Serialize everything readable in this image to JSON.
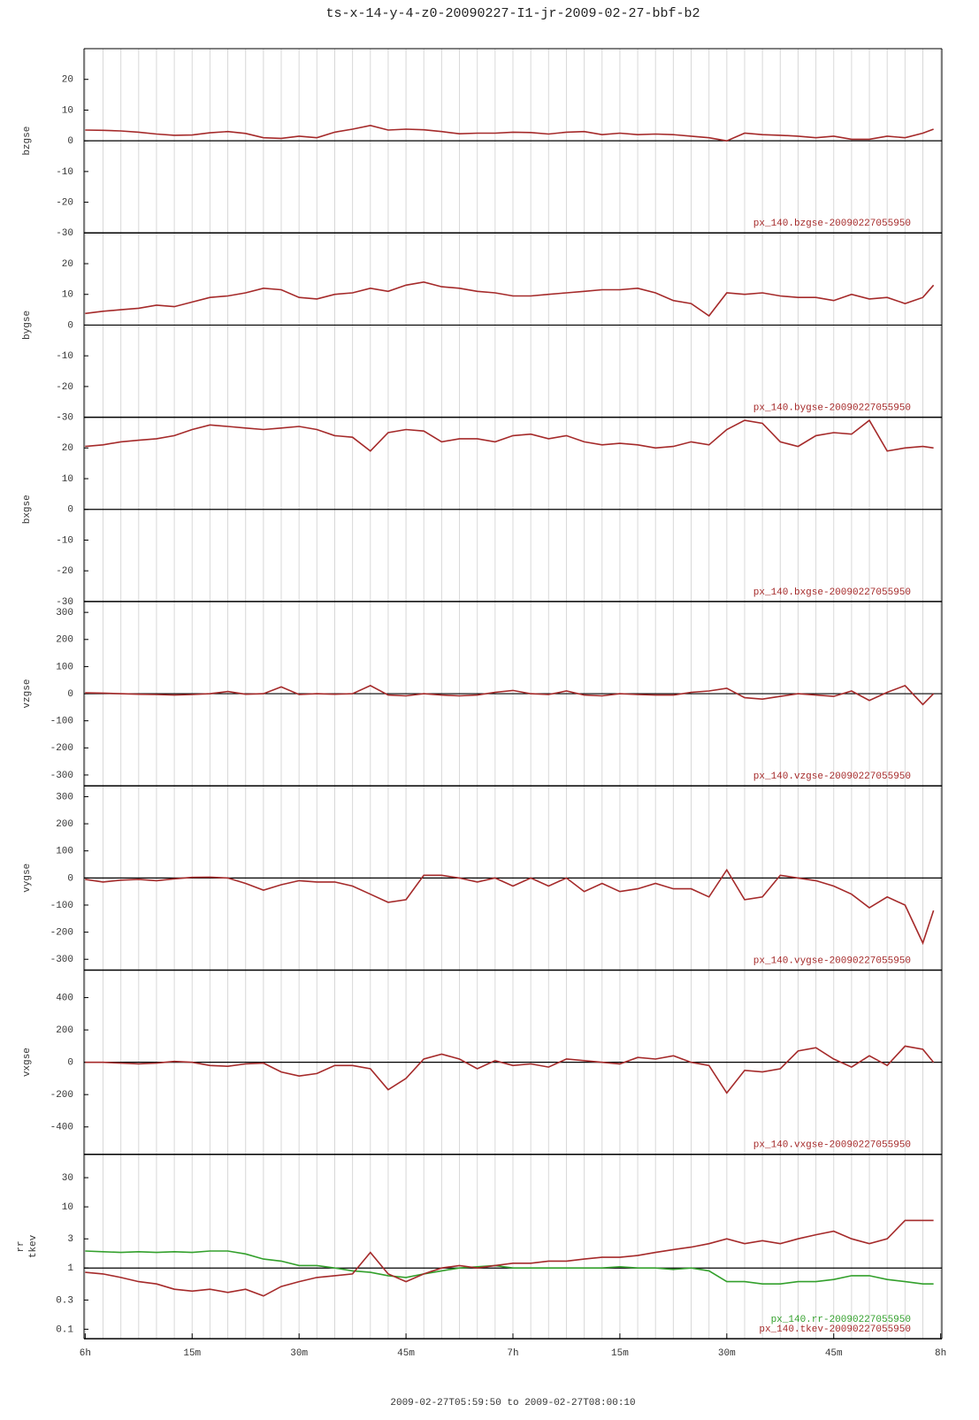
{
  "title": "ts-x-14-y-4-z0-20090227-I1-jr-2009-02-27-bbf-b2",
  "x_axis": {
    "xlim": [
      -0.1667,
      120.1667
    ],
    "xticks": [
      {
        "value": 0,
        "label": "6h"
      },
      {
        "value": 15,
        "label": "15m"
      },
      {
        "value": 30,
        "label": "30m"
      },
      {
        "value": 45,
        "label": "45m"
      },
      {
        "value": 60,
        "label": "7h"
      },
      {
        "value": 75,
        "label": "15m"
      },
      {
        "value": 90,
        "label": "30m"
      },
      {
        "value": 105,
        "label": "45m"
      },
      {
        "value": 120,
        "label": "8h"
      }
    ],
    "minor_ticks": [
      0,
      2.5,
      5,
      7.5,
      10,
      12.5,
      15,
      17.5,
      20,
      22.5,
      25,
      27.5,
      30,
      32.5,
      35,
      37.5,
      40,
      42.5,
      45,
      47.5,
      50,
      52.5,
      55,
      57.5,
      60,
      62.5,
      65,
      67.5,
      70,
      72.5,
      75,
      77.5,
      80,
      82.5,
      85,
      87.5,
      90,
      92.5,
      95,
      97.5,
      100,
      102.5,
      105,
      107.5,
      110,
      112.5,
      115,
      117.5,
      120
    ],
    "label": "2009-02-27T05:59:50 to 2009-02-27T08:00:10"
  },
  "chart_data": [
    {
      "type": "line",
      "ylabel": [
        "bzgse"
      ],
      "ylim": [
        -30,
        30
      ],
      "yticks": [
        -30,
        -20,
        -10,
        0,
        10,
        20
      ],
      "refline": 0,
      "x": [
        0,
        2.5,
        5,
        7.5,
        10,
        12.5,
        15,
        17.5,
        20,
        22.5,
        25,
        27.5,
        30,
        32.5,
        35,
        37.5,
        40,
        42.5,
        45,
        47.5,
        50,
        52.5,
        55,
        57.5,
        60,
        62.5,
        65,
        67.5,
        70,
        72.5,
        75,
        77.5,
        80,
        82.5,
        85,
        87.5,
        90,
        92.5,
        95,
        97.5,
        100,
        102.5,
        105,
        107.5,
        110,
        112.5,
        115,
        117.5,
        119
      ],
      "series": [
        {
          "name": "px_140.bzgse-20090227055950",
          "color": "#a52a2a",
          "values": [
            3.5,
            3.4,
            3.2,
            2.8,
            2.2,
            1.8,
            1.9,
            2.6,
            3.0,
            2.4,
            1.0,
            0.8,
            1.5,
            1.0,
            2.8,
            3.8,
            5.0,
            3.5,
            3.8,
            3.6,
            3.0,
            2.3,
            2.5,
            2.5,
            2.8,
            2.7,
            2.2,
            2.8,
            3.0,
            2.0,
            2.5,
            2.0,
            2.2,
            2.0,
            1.5,
            1.0,
            0.0,
            2.5,
            2.0,
            1.8,
            1.5,
            1.0,
            1.5,
            0.5,
            0.5,
            1.5,
            1.0,
            2.5,
            3.8
          ]
        }
      ]
    },
    {
      "type": "line",
      "ylabel": [
        "bygse"
      ],
      "ylim": [
        -30,
        30
      ],
      "yticks": [
        -30,
        -20,
        -10,
        0,
        10,
        20
      ],
      "refline": 0,
      "x": [
        0,
        2.5,
        5,
        7.5,
        10,
        12.5,
        15,
        17.5,
        20,
        22.5,
        25,
        27.5,
        30,
        32.5,
        35,
        37.5,
        40,
        42.5,
        45,
        47.5,
        50,
        52.5,
        55,
        57.5,
        60,
        62.5,
        65,
        67.5,
        70,
        72.5,
        75,
        77.5,
        80,
        82.5,
        85,
        87.5,
        90,
        92.5,
        95,
        97.5,
        100,
        102.5,
        105,
        107.5,
        110,
        112.5,
        115,
        117.5,
        119
      ],
      "series": [
        {
          "name": "px_140.bygse-20090227055950",
          "color": "#a52a2a",
          "values": [
            3.8,
            4.5,
            5,
            5.5,
            6.5,
            6,
            7.5,
            9,
            9.5,
            10.5,
            12,
            11.5,
            9,
            8.5,
            10,
            10.5,
            12,
            11,
            13,
            14,
            12.5,
            12,
            11,
            10.5,
            9.5,
            9.5,
            10,
            10.5,
            11,
            11.5,
            11.5,
            12,
            10.5,
            8,
            7,
            3,
            10.5,
            10,
            10.5,
            9.5,
            9,
            9,
            8,
            10,
            8.5,
            9,
            7,
            9,
            13
          ]
        }
      ]
    },
    {
      "type": "line",
      "ylabel": [
        "bxgse"
      ],
      "ylim": [
        -30,
        30
      ],
      "yticks": [
        -30,
        -20,
        -10,
        0,
        10,
        20
      ],
      "refline": 0,
      "x": [
        0,
        2.5,
        5,
        7.5,
        10,
        12.5,
        15,
        17.5,
        20,
        22.5,
        25,
        27.5,
        30,
        32.5,
        35,
        37.5,
        40,
        42.5,
        45,
        47.5,
        50,
        52.5,
        55,
        57.5,
        60,
        62.5,
        65,
        67.5,
        70,
        72.5,
        75,
        77.5,
        80,
        82.5,
        85,
        87.5,
        90,
        92.5,
        95,
        97.5,
        100,
        102.5,
        105,
        107.5,
        110,
        112.5,
        115,
        117.5,
        119
      ],
      "series": [
        {
          "name": "px_140.bxgse-20090227055950",
          "color": "#a52a2a",
          "values": [
            20.5,
            21,
            22,
            22.5,
            23,
            24,
            26,
            27.5,
            27,
            26.5,
            26,
            26.5,
            27,
            26,
            24,
            23.5,
            19,
            25,
            26,
            25.5,
            22,
            23,
            23,
            22,
            24,
            24.5,
            23,
            24,
            22,
            21,
            21.5,
            21,
            20,
            20.5,
            22,
            21,
            26,
            29,
            28,
            22,
            20.5,
            24,
            25,
            24.5,
            29,
            19,
            20,
            20.5,
            20
          ]
        }
      ]
    },
    {
      "type": "line",
      "ylabel": [
        "vzgse"
      ],
      "ylim": [
        -340,
        340
      ],
      "yticks": [
        -300,
        -200,
        -100,
        0,
        100,
        200,
        300
      ],
      "refline": 0,
      "x": [
        0,
        2.5,
        5,
        7.5,
        10,
        12.5,
        15,
        17.5,
        20,
        22.5,
        25,
        27.5,
        30,
        32.5,
        35,
        37.5,
        40,
        42.5,
        45,
        47.5,
        50,
        52.5,
        55,
        57.5,
        60,
        62.5,
        65,
        67.5,
        70,
        72.5,
        75,
        77.5,
        80,
        82.5,
        85,
        87.5,
        90,
        92.5,
        95,
        97.5,
        100,
        102.5,
        105,
        107.5,
        110,
        112.5,
        115,
        117.5,
        119
      ],
      "series": [
        {
          "name": "px_140.vzgse-20090227055950",
          "color": "#a52a2a",
          "values": [
            3,
            2,
            0,
            -2,
            -3,
            -5,
            -3,
            0,
            8,
            -2,
            0,
            25,
            -3,
            0,
            -2,
            0,
            30,
            -5,
            -8,
            0,
            -5,
            -8,
            -5,
            5,
            12,
            0,
            -3,
            10,
            -5,
            -8,
            0,
            -3,
            -5,
            -5,
            5,
            10,
            20,
            -15,
            -20,
            -10,
            0,
            -5,
            -10,
            10,
            -25,
            5,
            30,
            -40,
            0
          ]
        }
      ]
    },
    {
      "type": "line",
      "ylabel": [
        "vygse"
      ],
      "ylim": [
        -340,
        340
      ],
      "yticks": [
        -300,
        -200,
        -100,
        0,
        100,
        200,
        300
      ],
      "refline": 0,
      "x": [
        0,
        2.5,
        5,
        7.5,
        10,
        12.5,
        15,
        17.5,
        20,
        22.5,
        25,
        27.5,
        30,
        32.5,
        35,
        37.5,
        40,
        42.5,
        45,
        47.5,
        50,
        52.5,
        55,
        57.5,
        60,
        62.5,
        65,
        67.5,
        70,
        72.5,
        75,
        77.5,
        80,
        82.5,
        85,
        87.5,
        90,
        92.5,
        95,
        97.5,
        100,
        102.5,
        105,
        107.5,
        110,
        112.5,
        115,
        117.5,
        119
      ],
      "series": [
        {
          "name": "px_140.vygse-20090227055950",
          "color": "#a52a2a",
          "values": [
            -5,
            -15,
            -8,
            -5,
            -10,
            -3,
            2,
            3,
            0,
            -20,
            -45,
            -25,
            -10,
            -15,
            -15,
            -30,
            -60,
            -90,
            -80,
            10,
            10,
            0,
            -15,
            0,
            -30,
            0,
            -30,
            0,
            -50,
            -20,
            -50,
            -40,
            -20,
            -40,
            -40,
            -70,
            30,
            -80,
            -70,
            10,
            0,
            -10,
            -30,
            -60,
            -110,
            -70,
            -100,
            -240,
            -120
          ]
        }
      ]
    },
    {
      "type": "line",
      "ylabel": [
        "vxgse"
      ],
      "ylim": [
        -570,
        570
      ],
      "yticks": [
        -400,
        -200,
        0,
        200,
        400
      ],
      "refline": 0,
      "x": [
        0,
        2.5,
        5,
        7.5,
        10,
        12.5,
        15,
        17.5,
        20,
        22.5,
        25,
        27.5,
        30,
        32.5,
        35,
        37.5,
        40,
        42.5,
        45,
        47.5,
        50,
        52.5,
        55,
        57.5,
        60,
        62.5,
        65,
        67.5,
        70,
        72.5,
        75,
        77.5,
        80,
        82.5,
        85,
        87.5,
        90,
        92.5,
        95,
        97.5,
        100,
        102.5,
        105,
        107.5,
        110,
        112.5,
        115,
        117.5,
        119
      ],
      "series": [
        {
          "name": "px_140.vxgse-20090227055950",
          "color": "#a52a2a",
          "values": [
            0,
            0,
            -5,
            -10,
            -5,
            5,
            0,
            -20,
            -25,
            -10,
            -5,
            -60,
            -85,
            -70,
            -20,
            -20,
            -40,
            -170,
            -100,
            20,
            50,
            20,
            -40,
            10,
            -20,
            -10,
            -30,
            20,
            10,
            0,
            -10,
            30,
            20,
            40,
            0,
            -20,
            -190,
            -50,
            -60,
            -40,
            70,
            90,
            20,
            -30,
            40,
            -20,
            100,
            80,
            0
          ]
        }
      ]
    },
    {
      "type": "line",
      "ylabel": [
        "rr",
        "tkev"
      ],
      "ylog": true,
      "ylim": [
        0.07,
        72
      ],
      "yticks": [
        0.1,
        0.3,
        1,
        3,
        10,
        30
      ],
      "refline": 1,
      "x": [
        0,
        2.5,
        5,
        7.5,
        10,
        12.5,
        15,
        17.5,
        20,
        22.5,
        25,
        27.5,
        30,
        32.5,
        35,
        37.5,
        40,
        42.5,
        45,
        47.5,
        50,
        52.5,
        55,
        57.5,
        60,
        62.5,
        65,
        67.5,
        70,
        72.5,
        75,
        77.5,
        80,
        82.5,
        85,
        87.5,
        90,
        92.5,
        95,
        97.5,
        100,
        102.5,
        105,
        107.5,
        110,
        112.5,
        115,
        117.5,
        119
      ],
      "series": [
        {
          "name": "px_140.rr-20090227055950",
          "color": "#33a02c",
          "values": [
            1.9,
            1.85,
            1.8,
            1.85,
            1.8,
            1.85,
            1.8,
            1.9,
            1.9,
            1.7,
            1.4,
            1.3,
            1.1,
            1.1,
            1.0,
            0.9,
            0.85,
            0.75,
            0.7,
            0.8,
            0.9,
            1.0,
            1.05,
            1.1,
            1.0,
            1.0,
            1.0,
            1.0,
            1.0,
            1.0,
            1.05,
            1.0,
            1.0,
            0.95,
            1.0,
            0.9,
            0.6,
            0.6,
            0.55,
            0.55,
            0.6,
            0.6,
            0.65,
            0.75,
            0.75,
            0.65,
            0.6,
            0.55,
            0.55
          ]
        },
        {
          "name": "px_140.tkev-20090227055950",
          "color": "#a52a2a",
          "values": [
            0.85,
            0.8,
            0.7,
            0.6,
            0.55,
            0.45,
            0.42,
            0.45,
            0.4,
            0.45,
            0.35,
            0.5,
            0.6,
            0.7,
            0.75,
            0.8,
            1.8,
            0.8,
            0.6,
            0.8,
            1.0,
            1.1,
            1.0,
            1.1,
            1.2,
            1.2,
            1.3,
            1.3,
            1.4,
            1.5,
            1.5,
            1.6,
            1.8,
            2.0,
            2.2,
            2.5,
            3.0,
            2.5,
            2.8,
            2.5,
            3.0,
            3.5,
            4.0,
            3.0,
            2.5,
            3.0,
            6.0,
            6.0,
            6.0
          ]
        }
      ]
    }
  ]
}
